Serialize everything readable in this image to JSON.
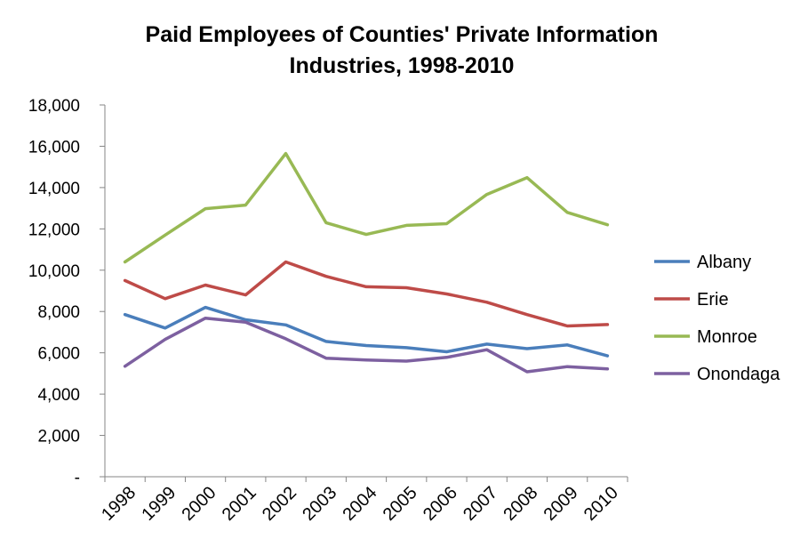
{
  "chart_data": {
    "type": "line",
    "title": [
      "Paid Employees of Counties' Private Information",
      "Industries, 1998-2010"
    ],
    "categories": [
      "1998",
      "1999",
      "2000",
      "2001",
      "2002",
      "2003",
      "2004",
      "2005",
      "2006",
      "2007",
      "2008",
      "2009",
      "2010"
    ],
    "y_tick_labels": [
      "-",
      "2,000",
      "4,000",
      "6,000",
      "8,000",
      "10,000",
      "12,000",
      "14,000",
      "16,000",
      "18,000"
    ],
    "ylim": [
      0,
      18000
    ],
    "grid": false,
    "legend_position": "right",
    "series": [
      {
        "name": "Albany",
        "color": "#4a7ebb",
        "values": [
          7850,
          7200,
          8200,
          7600,
          7350,
          6550,
          6350,
          6250,
          6050,
          6420,
          6200,
          6380,
          5850
        ]
      },
      {
        "name": "Erie",
        "color": "#be4b48",
        "values": [
          9500,
          8620,
          9280,
          8800,
          10400,
          9700,
          9200,
          9150,
          8850,
          8450,
          7850,
          7300,
          7370
        ]
      },
      {
        "name": "Monroe",
        "color": "#98b954",
        "values": [
          10400,
          11700,
          12980,
          13150,
          15650,
          12300,
          11730,
          12170,
          12250,
          13670,
          14480,
          12800,
          12200
        ]
      },
      {
        "name": "Onondaga",
        "color": "#7d60a0",
        "values": [
          5350,
          6650,
          7680,
          7480,
          6680,
          5740,
          5650,
          5600,
          5780,
          6150,
          5080,
          5330,
          5220
        ]
      }
    ]
  }
}
